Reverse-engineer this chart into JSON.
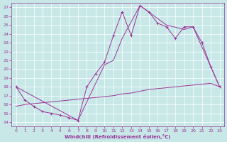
{
  "xlabel": "Windchill (Refroidissement éolien,°C)",
  "xlim": [
    -0.5,
    23.5
  ],
  "ylim": [
    13.5,
    27.5
  ],
  "xticks": [
    0,
    1,
    2,
    3,
    4,
    5,
    6,
    7,
    8,
    9,
    10,
    11,
    12,
    13,
    14,
    15,
    16,
    17,
    18,
    19,
    20,
    21,
    22,
    23
  ],
  "yticks": [
    14,
    15,
    16,
    17,
    18,
    19,
    20,
    21,
    22,
    23,
    24,
    25,
    26,
    27
  ],
  "bg_color": "#c8e8e8",
  "grid_color": "#aacccc",
  "line_color": "#993399",
  "line1_x": [
    0,
    1,
    2,
    3,
    4,
    5,
    6,
    7,
    8,
    9,
    10,
    11,
    12,
    13,
    14,
    15,
    16,
    17,
    18,
    19,
    20,
    21,
    22,
    23
  ],
  "line1_y": [
    18.0,
    16.5,
    15.8,
    15.2,
    15.0,
    14.8,
    14.5,
    14.2,
    18.0,
    19.5,
    20.8,
    23.8,
    26.5,
    23.8,
    27.2,
    26.5,
    25.2,
    24.8,
    23.5,
    24.8,
    24.8,
    23.0,
    20.3,
    18.0
  ],
  "line2_x": [
    0,
    7,
    10,
    11,
    12,
    14,
    17,
    19,
    20,
    23
  ],
  "line2_y": [
    18.0,
    14.2,
    20.5,
    21.0,
    23.5,
    27.2,
    25.0,
    24.5,
    24.8,
    18.0
  ],
  "line3_x": [
    0,
    1,
    2,
    3,
    4,
    5,
    6,
    7,
    8,
    9,
    10,
    11,
    12,
    13,
    14,
    15,
    16,
    17,
    18,
    19,
    20,
    21,
    22,
    23
  ],
  "line3_y": [
    15.8,
    16.0,
    16.1,
    16.2,
    16.3,
    16.4,
    16.5,
    16.6,
    16.7,
    16.8,
    16.9,
    17.0,
    17.2,
    17.3,
    17.5,
    17.7,
    17.8,
    17.9,
    18.0,
    18.1,
    18.2,
    18.3,
    18.4,
    18.0
  ]
}
